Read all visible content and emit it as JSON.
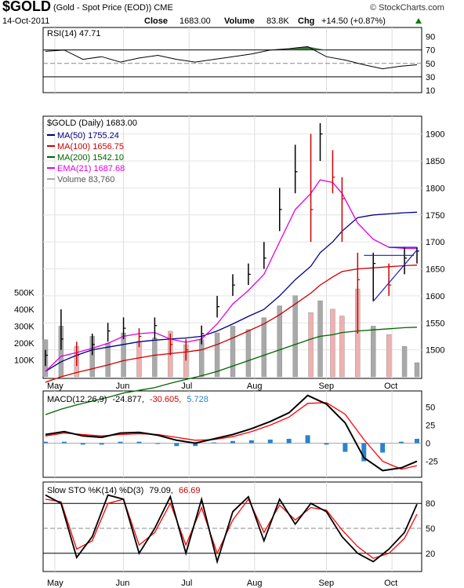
{
  "header": {
    "symbol": "$GOLD",
    "description": "(Gold - Spot Price (EOD)) CME",
    "watermark": "© StockCharts.com",
    "date": "14-Oct-2011",
    "close_label": "Close",
    "close_value": "1683.00",
    "volume_label": "Volume",
    "volume_value": "83.8K",
    "chg_label": "Chg",
    "chg_value": "+14.50 (+0.87%)",
    "chg_color": "#008000"
  },
  "colors": {
    "ma50": "#000080",
    "ma100": "#cc0000",
    "ma200": "#006400",
    "ema21": "#e000e0",
    "rsi_fill": "#3c783c",
    "macd_line": "#000000",
    "macd_signal": "#ff0000",
    "macd_hist": "#2a84c8",
    "sto_k": "#000000",
    "sto_d": "#ff0000",
    "trendline": "#1a1acc",
    "volume_up": "#a9a9a9",
    "volume_down": "#f0b0b0"
  },
  "rsi": {
    "label": "RSI(14) 47.71",
    "ticks": [
      "90",
      "70",
      "50",
      "30",
      "10"
    ]
  },
  "price": {
    "title": "$GOLD (Daily) 1683.00",
    "legend": [
      {
        "text": "MA(50) 1755.24",
        "color_key": "ma50"
      },
      {
        "text": "MA(100) 1656.75",
        "color_key": "ma100"
      },
      {
        "text": "MA(200) 1542.10",
        "color_key": "ma200"
      },
      {
        "text": "EMA(21) 1687.68",
        "color_key": "ema21"
      },
      {
        "text": "Volume 83,760",
        "color_key": "volume_up"
      }
    ],
    "ticks": [
      "1900",
      "1850",
      "1800",
      "1750",
      "1700",
      "1650",
      "1600",
      "1550",
      "1500"
    ],
    "volume_ticks": [
      "500K",
      "400K",
      "300K",
      "200K",
      "100K"
    ]
  },
  "macd": {
    "label_prefix": "MACD(12,26,9)",
    "macd_value": "-24.877,",
    "signal_value": "-30.605,",
    "hist_value": "5.728",
    "ticks": [
      "50",
      "25",
      "0",
      "-25"
    ]
  },
  "sto": {
    "label_prefix": "Slow STO %K(14) %D(3)",
    "k_value": "79.09,",
    "d_value": "66.69",
    "ticks": [
      "80",
      "50",
      "20"
    ]
  },
  "x_axis": {
    "months": [
      "May",
      "Jun",
      "Jul",
      "Aug",
      "Sep",
      "Oct"
    ]
  },
  "chart_data": [
    {
      "type": "line",
      "name": "RSI(14)",
      "ylim": [
        10,
        100
      ],
      "levels": [
        70,
        50,
        30
      ],
      "x_index": [
        0,
        6,
        12,
        18,
        24,
        30,
        36,
        42,
        48,
        54,
        60,
        66,
        72,
        78,
        84,
        90,
        96,
        102,
        108,
        114,
        119
      ],
      "values": [
        68,
        70,
        56,
        60,
        52,
        58,
        62,
        56,
        52,
        56,
        60,
        64,
        70,
        72,
        75,
        60,
        55,
        48,
        42,
        46,
        48
      ]
    },
    {
      "type": "candlestick",
      "name": "$GOLD (Daily)",
      "ylim": [
        1450,
        1930
      ],
      "x_index": [
        0,
        5,
        10,
        15,
        20,
        25,
        30,
        35,
        40,
        45,
        50,
        55,
        60,
        65,
        70,
        75,
        80,
        85,
        88,
        92,
        95,
        100,
        105,
        110,
        115,
        119
      ],
      "close": [
        1490,
        1520,
        1490,
        1510,
        1535,
        1540,
        1525,
        1545,
        1510,
        1500,
        1530,
        1580,
        1620,
        1640,
        1670,
        1760,
        1830,
        1760,
        1900,
        1820,
        1780,
        1630,
        1660,
        1620,
        1670,
        1683
      ],
      "high": [
        1500,
        1575,
        1515,
        1530,
        1550,
        1560,
        1540,
        1560,
        1530,
        1520,
        1545,
        1600,
        1640,
        1660,
        1700,
        1800,
        1880,
        1900,
        1920,
        1870,
        1820,
        1680,
        1680,
        1660,
        1690,
        1690
      ],
      "low": [
        1470,
        1500,
        1470,
        1490,
        1515,
        1520,
        1505,
        1520,
        1490,
        1480,
        1510,
        1560,
        1600,
        1620,
        1650,
        1720,
        1790,
        1700,
        1850,
        1790,
        1700,
        1530,
        1590,
        1600,
        1640,
        1660
      ],
      "ma50": [
        1460,
        1478,
        1490,
        1500,
        1505,
        1510,
        1515,
        1518,
        1520,
        1522,
        1525,
        1535,
        1548,
        1562,
        1575,
        1600,
        1630,
        1655,
        1680,
        1700,
        1720,
        1745,
        1750,
        1752,
        1754,
        1755
      ],
      "ma100": [
        1440,
        1450,
        1458,
        1465,
        1472,
        1480,
        1485,
        1490,
        1493,
        1496,
        1500,
        1510,
        1522,
        1535,
        1548,
        1565,
        1585,
        1605,
        1620,
        1635,
        1645,
        1650,
        1652,
        1654,
        1656,
        1657
      ],
      "ma200": [
        1380,
        1390,
        1398,
        1405,
        1412,
        1420,
        1425,
        1430,
        1438,
        1445,
        1452,
        1460,
        1470,
        1480,
        1490,
        1500,
        1510,
        1520,
        1525,
        1528,
        1532,
        1535,
        1537,
        1539,
        1541,
        1542
      ],
      "ema21": [
        1460,
        1488,
        1495,
        1503,
        1512,
        1525,
        1530,
        1532,
        1520,
        1514,
        1520,
        1548,
        1585,
        1610,
        1640,
        1700,
        1760,
        1790,
        1815,
        1810,
        1790,
        1735,
        1705,
        1690,
        1688,
        1688
      ]
    },
    {
      "type": "bar",
      "name": "Volume",
      "ylim": [
        0,
        650000
      ],
      "x_index": [
        0,
        5,
        10,
        15,
        20,
        25,
        30,
        35,
        40,
        45,
        50,
        55,
        60,
        65,
        70,
        75,
        80,
        85,
        88,
        92,
        95,
        100,
        105,
        110,
        115,
        119
      ],
      "values": [
        220000,
        300000,
        180000,
        240000,
        200000,
        260000,
        210000,
        230000,
        270000,
        190000,
        220000,
        260000,
        300000,
        280000,
        350000,
        420000,
        480000,
        380000,
        450000,
        400000,
        360000,
        520000,
        300000,
        250000,
        180000,
        83760
      ]
    },
    {
      "type": "line",
      "name": "MACD(12,26,9)",
      "ylim": [
        -45,
        70
      ],
      "x_index": [
        0,
        6,
        12,
        18,
        24,
        30,
        36,
        42,
        48,
        54,
        60,
        66,
        72,
        78,
        84,
        90,
        96,
        102,
        108,
        114,
        119
      ],
      "macd": [
        12,
        16,
        10,
        8,
        14,
        15,
        11,
        4,
        0,
        6,
        12,
        20,
        30,
        42,
        66,
        54,
        28,
        -20,
        -38,
        -34,
        -25
      ],
      "signal": [
        10,
        14,
        12,
        10,
        12,
        13,
        12,
        8,
        4,
        5,
        9,
        16,
        25,
        36,
        55,
        56,
        40,
        5,
        -25,
        -36,
        -31
      ],
      "histogram": [
        2,
        2,
        -2,
        -2,
        2,
        2,
        -1,
        -4,
        -4,
        1,
        3,
        4,
        5,
        6,
        11,
        -2,
        -12,
        -25,
        -13,
        2,
        6
      ]
    },
    {
      "type": "line",
      "name": "Slow STO %K(14) %D(3)",
      "ylim": [
        0,
        100
      ],
      "levels": [
        80,
        50,
        20
      ],
      "x_index": [
        0,
        5,
        10,
        15,
        20,
        25,
        30,
        35,
        40,
        45,
        50,
        55,
        60,
        65,
        70,
        75,
        80,
        85,
        90,
        95,
        100,
        105,
        110,
        115,
        119
      ],
      "k": [
        90,
        80,
        15,
        40,
        90,
        85,
        20,
        50,
        88,
        20,
        85,
        10,
        70,
        88,
        35,
        85,
        55,
        80,
        70,
        40,
        20,
        10,
        25,
        45,
        79
      ],
      "d": [
        85,
        82,
        25,
        35,
        80,
        85,
        30,
        45,
        80,
        30,
        75,
        20,
        60,
        85,
        45,
        78,
        60,
        75,
        72,
        48,
        28,
        14,
        20,
        38,
        67
      ]
    }
  ]
}
